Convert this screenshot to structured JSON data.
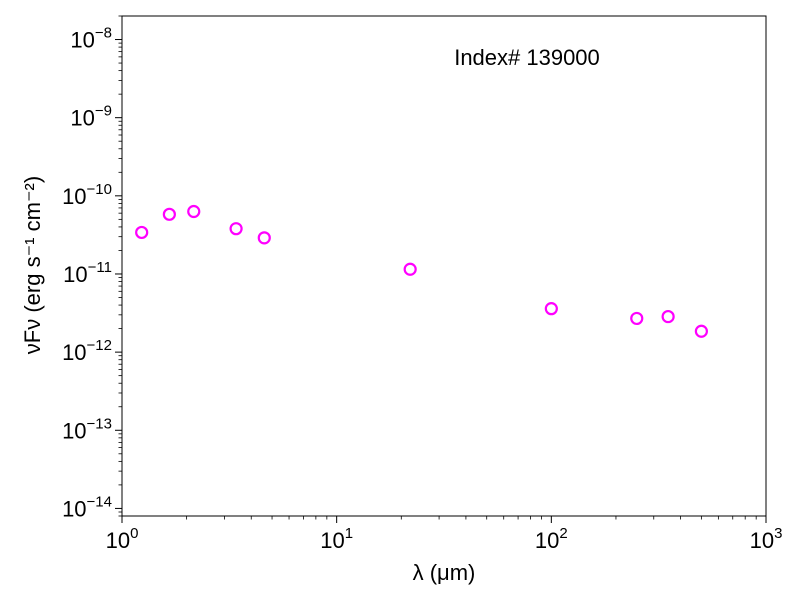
{
  "chart_data": {
    "type": "scatter",
    "annotation": "Index# 139000",
    "xlabel": "λ (μm)",
    "ylabel": "νFν (erg s⁻¹ cm⁻²)",
    "xscale": "log",
    "yscale": "log",
    "xlim": [
      1,
      1000
    ],
    "ylim": [
      8e-15,
      2e-08
    ],
    "grid": false,
    "marker": "open-circle",
    "marker_color": "#ff00ff",
    "x_ticks": [
      {
        "value": 1,
        "base": "10",
        "exp": "0"
      },
      {
        "value": 10,
        "base": "10",
        "exp": "1"
      },
      {
        "value": 100,
        "base": "10",
        "exp": "2"
      },
      {
        "value": 1000,
        "base": "10",
        "exp": "3"
      }
    ],
    "y_ticks": [
      {
        "value": 1e-14,
        "base": "10",
        "exp": "−14"
      },
      {
        "value": 1e-13,
        "base": "10",
        "exp": "−13"
      },
      {
        "value": 1e-12,
        "base": "10",
        "exp": "−12"
      },
      {
        "value": 1e-11,
        "base": "10",
        "exp": "−11"
      },
      {
        "value": 1e-10,
        "base": "10",
        "exp": "−10"
      },
      {
        "value": 1e-09,
        "base": "10",
        "exp": "−9"
      },
      {
        "value": 1e-08,
        "base": "10",
        "exp": "−8"
      }
    ],
    "points": [
      {
        "x": 1.235,
        "y": 3.4e-11
      },
      {
        "x": 1.662,
        "y": 5.8e-11
      },
      {
        "x": 2.159,
        "y": 6.3e-11
      },
      {
        "x": 3.4,
        "y": 3.8e-11
      },
      {
        "x": 4.6,
        "y": 2.9e-11
      },
      {
        "x": 22,
        "y": 1.15e-11
      },
      {
        "x": 100,
        "y": 3.6e-12
      },
      {
        "x": 250,
        "y": 2.7e-12
      },
      {
        "x": 350,
        "y": 2.85e-12
      },
      {
        "x": 500,
        "y": 1.85e-12
      }
    ]
  }
}
